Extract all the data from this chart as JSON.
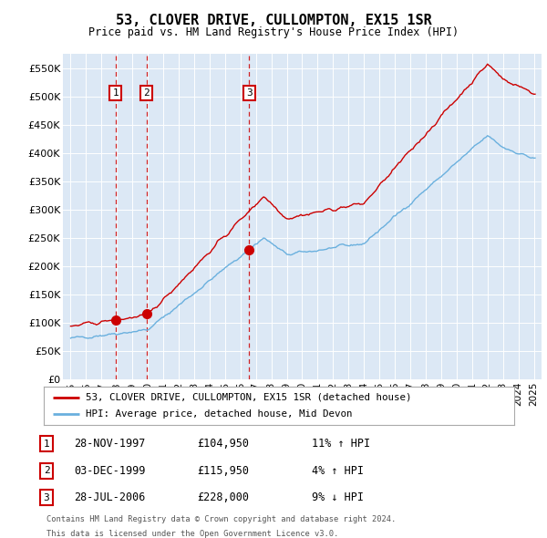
{
  "title": "53, CLOVER DRIVE, CULLOMPTON, EX15 1SR",
  "subtitle": "Price paid vs. HM Land Registry's House Price Index (HPI)",
  "legend_line1": "53, CLOVER DRIVE, CULLOMPTON, EX15 1SR (detached house)",
  "legend_line2": "HPI: Average price, detached house, Mid Devon",
  "footer1": "Contains HM Land Registry data © Crown copyright and database right 2024.",
  "footer2": "This data is licensed under the Open Government Licence v3.0.",
  "transactions": [
    {
      "num": 1,
      "date": "28-NOV-1997",
      "price": 104950,
      "pct": "11%",
      "dir": "↑"
    },
    {
      "num": 2,
      "date": "03-DEC-1999",
      "price": 115950,
      "pct": "4%",
      "dir": "↑"
    },
    {
      "num": 3,
      "date": "28-JUL-2006",
      "price": 228000,
      "pct": "9%",
      "dir": "↓"
    }
  ],
  "transaction_years": [
    1997.91,
    1999.92,
    2006.57
  ],
  "transaction_prices": [
    104950,
    115950,
    228000
  ],
  "hpi_color": "#6ab0de",
  "price_color": "#cc0000",
  "dashed_color": "#cc0000",
  "background_plot": "#dce8f5",
  "background_fig": "#ffffff",
  "ylim": [
    0,
    575000
  ],
  "yticks": [
    0,
    50000,
    100000,
    150000,
    200000,
    250000,
    300000,
    350000,
    400000,
    450000,
    500000,
    550000
  ],
  "xlim_start": 1994.5,
  "xlim_end": 2025.5
}
